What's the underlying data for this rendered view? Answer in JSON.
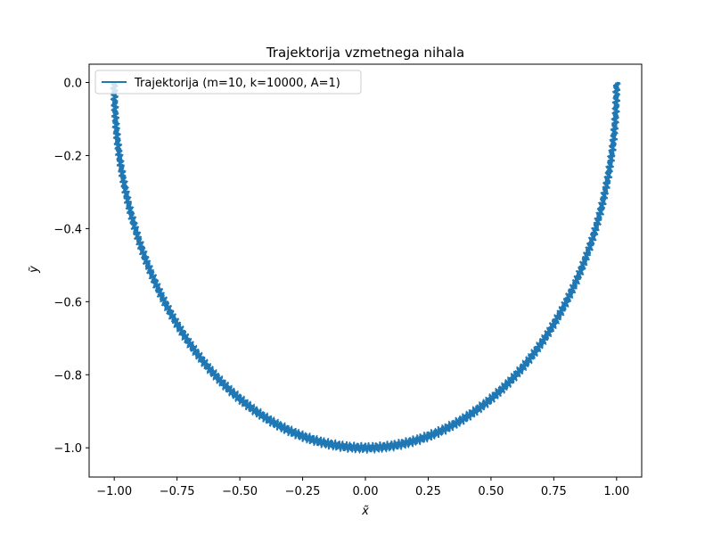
{
  "chart_data": {
    "type": "line",
    "title": "Trajektorija vzmetnega nihala",
    "xlabel": "x̃",
    "ylabel": "ỹ",
    "xlim": [
      -1.1,
      1.1
    ],
    "ylim": [
      -1.08,
      0.05
    ],
    "xticks": [
      -1.0,
      -0.75,
      -0.5,
      -0.25,
      0.0,
      0.25,
      0.5,
      0.75,
      1.0
    ],
    "xtick_labels": [
      "−1.00",
      "−0.75",
      "−0.50",
      "−0.25",
      "0.00",
      "0.25",
      "0.50",
      "0.75",
      "1.00"
    ],
    "yticks": [
      0.0,
      -0.2,
      -0.4,
      -0.6,
      -0.8,
      -1.0
    ],
    "ytick_labels": [
      "0.0",
      "−0.2",
      "−0.4",
      "−0.6",
      "−0.8",
      "−1.0"
    ],
    "grid": false,
    "legend_position": "top-left",
    "series": [
      {
        "name": "Trajektorija (m=10, k=10000, A=1)",
        "color": "#1f77b4",
        "description": "trajectory along lower half of unit circle from (1, 0) to (-1, -0.04), with small high-frequency radial oscillation",
        "x": [
          1.0,
          0.999,
          0.995,
          0.98,
          0.966,
          0.94,
          0.9,
          0.866,
          0.8,
          0.707,
          0.6,
          0.5,
          0.4,
          0.3,
          0.2,
          0.1,
          0.0,
          -0.1,
          -0.2,
          -0.3,
          -0.4,
          -0.5,
          -0.6,
          -0.707,
          -0.8,
          -0.866,
          -0.9,
          -0.94,
          -0.966,
          -0.98,
          -0.995,
          -0.999
        ],
        "y": [
          0.0,
          -0.045,
          -0.1,
          -0.199,
          -0.259,
          -0.341,
          -0.436,
          -0.5,
          -0.6,
          -0.707,
          -0.8,
          -0.866,
          -0.917,
          -0.954,
          -0.98,
          -0.995,
          -1.01,
          -0.995,
          -0.98,
          -0.954,
          -0.917,
          -0.866,
          -0.8,
          -0.707,
          -0.6,
          -0.5,
          -0.436,
          -0.341,
          -0.259,
          -0.199,
          -0.1,
          -0.04
        ]
      }
    ]
  }
}
